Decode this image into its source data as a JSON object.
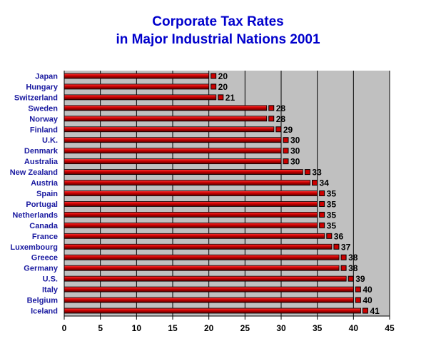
{
  "chart_data": {
    "type": "bar",
    "orientation": "horizontal",
    "title_line1": "Corporate Tax Rates",
    "title_line2": "in Major Industrial Nations 2001",
    "categories": [
      "Japan",
      "Hungary",
      "Switzerland",
      "Sweden",
      "Norway",
      "Finland",
      "U.K.",
      "Denmark",
      "Australia",
      "New Zealand",
      "Austria",
      "Spain",
      "Portugal",
      "Netherlands",
      "Canada",
      "France",
      "Luxembourg",
      "Greece",
      "Germany",
      "U.S.",
      "Italy",
      "Belgium",
      "Iceland"
    ],
    "values": [
      20,
      20,
      21,
      28,
      28,
      29,
      30,
      30,
      30,
      33,
      34,
      35,
      35,
      35,
      35,
      36,
      37,
      38,
      38,
      39,
      40,
      40,
      41
    ],
    "xlim": [
      0,
      45
    ],
    "xticks": [
      "0",
      "5",
      "10",
      "15",
      "20",
      "25",
      "30",
      "35",
      "40",
      "45"
    ],
    "xlabel": "",
    "ylabel": "",
    "grid": "vertical",
    "legend": "none",
    "colors": {
      "title": "#0000cc",
      "category_label": "#1a1aa0",
      "bar": "#cc0000",
      "bar_dark": "#550000",
      "plot_background": "#c0c0c0"
    }
  }
}
